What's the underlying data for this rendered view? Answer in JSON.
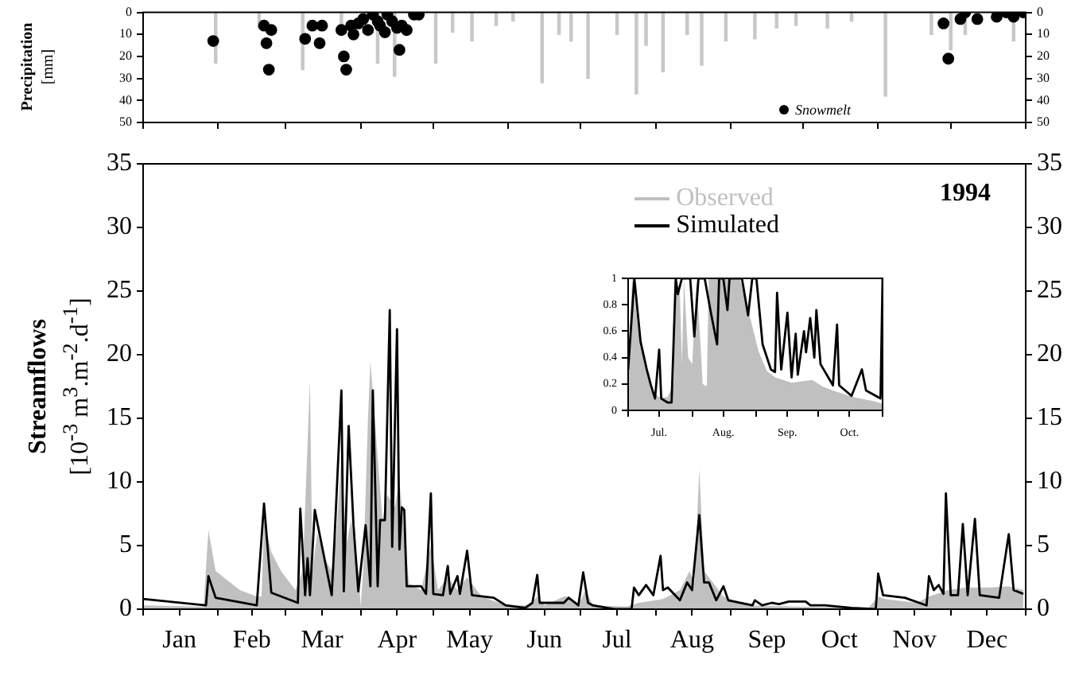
{
  "chart_data": [
    {
      "type": "bar",
      "ylabel": "Precipitation\n[mm]",
      "xlim": [
        "1994-01-01",
        "1995-01-01"
      ],
      "xticks": [
        {
          "value": "1994-01-01",
          "label": null
        },
        {
          "value": "1994-02-01",
          "label": null
        },
        {
          "value": "1994-03-01",
          "label": null
        },
        {
          "value": "1994-04-01",
          "label": null
        },
        {
          "value": "1994-05-01",
          "label": null
        },
        {
          "value": "1994-06-01",
          "label": null
        },
        {
          "value": "1994-07-01",
          "label": null
        },
        {
          "value": "1994-08-01",
          "label": null
        },
        {
          "value": "1994-09-01",
          "label": null
        },
        {
          "value": "1994-10-01",
          "label": null
        },
        {
          "value": "1994-11-01",
          "label": null
        },
        {
          "value": "1994-12-01",
          "label": null
        },
        {
          "value": "1995-01-01",
          "label": null
        }
      ],
      "ylim": [
        50,
        0
      ],
      "yticks": [
        0,
        10,
        20,
        30,
        40,
        50
      ],
      "y2lim": [
        50,
        0
      ],
      "y2ticks": [
        0,
        10,
        20,
        30,
        40,
        50
      ],
      "tick_labels": "y",
      "legend": "bottom right",
      "marker": "circle",
      "series": [
        {
          "color": "#c8c8c8",
          "x": [
            "1994-01-31",
            "1994-02-18",
            "1994-03-08",
            "1994-03-17",
            "1994-03-24",
            "1994-03-31",
            "1994-04-08",
            "1994-04-15",
            "1994-05-02",
            "1994-05-09",
            "1994-05-17",
            "1994-05-27",
            "1994-06-03",
            "1994-06-15",
            "1994-06-22",
            "1994-06-27",
            "1994-07-04",
            "1994-07-16",
            "1994-07-24",
            "1994-07-28",
            "1994-08-04",
            "1994-08-14",
            "1994-08-20",
            "1994-08-30",
            "1994-09-11",
            "1994-09-20",
            "1994-09-28",
            "1994-10-11",
            "1994-10-21",
            "1994-11-04",
            "1994-11-23",
            "1994-12-01",
            "1994-12-07",
            "1994-12-19",
            "1994-12-27"
          ],
          "values": [
            23,
            7,
            26,
            null,
            7,
            null,
            23,
            29,
            23,
            9,
            13,
            6,
            4,
            32,
            10,
            13,
            30,
            10,
            37,
            15,
            27,
            10,
            24,
            13,
            12,
            7,
            6,
            7,
            4,
            38,
            10,
            17,
            10,
            null,
            13
          ]
        },
        {
          "type": "scatter",
          "name": "Snowmelt",
          "color": "#000000",
          "x": [
            "1994-01-30",
            "1994-02-20",
            "1994-02-21",
            "1994-02-22",
            "1994-02-23",
            "1994-03-09",
            "1994-03-12",
            "1994-03-15",
            "1994-03-16",
            "1994-03-24",
            "1994-03-25",
            "1994-03-26",
            "1994-03-28",
            "1994-03-29",
            "1994-03-31",
            "1994-04-02",
            "1994-04-04",
            "1994-04-06",
            "1994-04-08",
            "1994-04-09",
            "1994-04-11",
            "1994-04-12",
            "1994-04-14",
            "1994-04-16",
            "1994-04-17",
            "1994-04-18",
            "1994-04-20",
            "1994-04-23",
            "1994-04-25",
            "1994-11-28",
            "1994-11-30",
            "1994-12-05",
            "1994-12-07",
            "1994-12-12",
            "1994-12-20",
            "1994-12-24",
            "1994-12-27",
            "1994-12-31"
          ],
          "values": [
            13,
            6,
            14,
            26,
            8,
            12,
            6,
            14,
            6,
            8,
            20,
            26,
            6,
            10,
            5,
            3,
            8,
            1,
            4,
            6,
            9,
            1,
            4,
            7,
            17,
            6,
            8,
            1,
            1,
            5,
            21,
            3,
            0,
            3,
            2,
            0,
            2,
            0
          ]
        }
      ]
    },
    {
      "type": "area",
      "ylabel": "Streamflows\n[10$^{-3}$ m$^{3}$.m$^{-2}$.d$^{-1}$]",
      "annotations": [
        "1994"
      ],
      "xlim": [
        "1994-01-01",
        "1995-01-01"
      ],
      "xticks": [
        {
          "value": "1994-01-01",
          "label": null
        },
        {
          "value": "1994-01-16",
          "label": "Jan"
        },
        {
          "value": "1994-02-01",
          "label": null
        },
        {
          "value": "1994-02-15",
          "label": "Feb"
        },
        {
          "value": "1994-03-01",
          "label": null
        },
        {
          "value": "1994-03-16",
          "label": "Mar"
        },
        {
          "value": "1994-04-01",
          "label": null
        },
        {
          "value": "1994-04-16",
          "label": "Apr"
        },
        {
          "value": "1994-05-01",
          "label": null
        },
        {
          "value": "1994-05-16",
          "label": "May"
        },
        {
          "value": "1994-06-01",
          "label": null
        },
        {
          "value": "1994-06-16",
          "label": "Jun"
        },
        {
          "value": "1994-07-01",
          "label": null
        },
        {
          "value": "1994-07-16",
          "label": "Jul"
        },
        {
          "value": "1994-08-01",
          "label": null
        },
        {
          "value": "1994-08-16",
          "label": "Aug"
        },
        {
          "value": "1994-09-01",
          "label": null
        },
        {
          "value": "1994-09-16",
          "label": "Sep"
        },
        {
          "value": "1994-10-01",
          "label": null
        },
        {
          "value": "1994-10-16",
          "label": "Oct"
        },
        {
          "value": "1994-11-01",
          "label": null
        },
        {
          "value": "1994-11-16",
          "label": "Nov"
        },
        {
          "value": "1994-12-01",
          "label": null
        },
        {
          "value": "1994-12-16",
          "label": "Dec"
        },
        {
          "value": "1995-01-01",
          "label": null
        }
      ],
      "ylim": [
        0,
        35
      ],
      "yticks": [
        0,
        5,
        10,
        15,
        20,
        25,
        30,
        35
      ],
      "y2lim": [
        0,
        35
      ],
      "y2ticks": [
        0,
        5,
        10,
        15,
        20,
        25,
        30,
        35
      ],
      "legend": "top right",
      "series": [
        {
          "name": "Observed",
          "color": "#c0c0c0",
          "x": [
            "1994-01-01",
            "1994-01-26",
            "1994-01-28",
            "1994-01-31",
            "1994-02-10",
            "1994-02-17",
            "1994-02-19",
            "1994-02-20",
            "1994-02-23",
            "1994-02-27",
            "1994-03-05",
            "1994-03-08",
            "1994-03-11",
            "1994-03-12",
            "1994-03-14",
            "1994-03-17",
            "1994-03-20",
            "1994-03-22",
            "1994-03-24",
            "1994-03-26",
            "1994-03-28",
            "1994-03-31",
            "1994-04-01",
            "1994-04-02",
            "1994-04-04",
            "1994-04-05",
            "1994-04-10",
            "1994-04-12",
            "1994-04-15",
            "1994-04-17",
            "1994-04-19",
            "1994-04-21",
            "1994-04-26",
            "1994-04-30",
            "1994-05-03",
            "1994-05-07",
            "1994-05-11",
            "1994-05-15",
            "1994-05-21",
            "1994-05-31",
            "1994-06-10",
            "1994-06-13",
            "1994-06-16",
            "1994-06-24",
            "1994-06-26",
            "1994-06-30",
            "1994-07-03",
            "1994-07-06",
            "1994-07-20",
            "1994-07-25",
            "1994-08-04",
            "1994-08-11",
            "1994-08-15",
            "1994-08-17",
            "1994-08-19",
            "1994-08-21",
            "1994-08-25",
            "1994-08-29",
            "1994-09-08",
            "1994-09-28",
            "1994-10-28",
            "1994-11-01",
            "1994-11-04",
            "1994-11-17",
            "1994-11-22",
            "1994-11-30",
            "1994-12-07",
            "1994-12-17",
            "1994-12-25",
            "1994-12-31"
          ],
          "values": [
            0.3,
            0.2,
            6.2,
            3.0,
            1.5,
            1.0,
            1.0,
            7.0,
            4.5,
            3.0,
            1.5,
            3.0,
            18,
            3.0,
            6.0,
            4.0,
            3.0,
            6.0,
            12,
            5,
            7,
            3,
            0.2,
            3,
            15,
            19.5,
            7,
            9,
            8,
            10,
            6,
            2,
            1.5,
            5,
            1.5,
            2.5,
            1.5,
            2.5,
            1,
            0.3,
            0.3,
            1,
            0.3,
            1,
            1,
            0.3,
            1.5,
            0.3,
            0.2,
            0.5,
            0.8,
            1.5,
            3,
            2,
            11,
            3,
            2,
            1,
            0.3,
            0.2,
            0.1,
            1,
            0.8,
            0.5,
            1,
            1.5,
            1.7,
            1.7,
            1.8,
            1.5
          ]
        },
        {
          "type": "line",
          "name": "Simulated",
          "color": "#000000",
          "x": [
            "1994-01-01",
            "1994-01-27",
            "1994-01-28",
            "1994-01-31",
            "1994-02-17",
            "1994-02-20",
            "1994-02-23",
            "1994-03-06",
            "1994-03-07",
            "1994-03-09",
            "1994-03-10",
            "1994-03-11",
            "1994-03-13",
            "1994-03-20",
            "1994-03-21",
            "1994-03-24",
            "1994-03-25",
            "1994-03-27",
            "1994-03-29",
            "1994-03-31",
            "1994-04-03",
            "1994-04-05",
            "1994-04-06",
            "1994-04-08",
            "1994-04-09",
            "1994-04-11",
            "1994-04-13",
            "1994-04-14",
            "1994-04-16",
            "1994-04-17",
            "1994-04-18",
            "1994-04-19",
            "1994-04-20",
            "1994-04-26",
            "1994-04-28",
            "1994-04-30",
            "1994-05-01",
            "1994-05-05",
            "1994-05-07",
            "1994-05-08",
            "1994-05-11",
            "1994-05-12",
            "1994-05-15",
            "1994-05-17",
            "1994-05-26",
            "1994-05-31",
            "1994-06-08",
            "1994-06-11",
            "1994-06-13",
            "1994-06-14",
            "1994-06-24",
            "1994-06-26",
            "1994-06-30",
            "1994-07-02",
            "1994-07-04",
            "1994-07-06",
            "1994-07-15",
            "1994-07-22",
            "1994-07-23",
            "1994-07-25",
            "1994-07-28",
            "1994-07-31",
            "1994-08-03",
            "1994-08-04",
            "1994-08-06",
            "1994-08-11",
            "1994-08-14",
            "1994-08-16",
            "1994-08-19",
            "1994-08-21",
            "1994-08-23",
            "1994-08-26",
            "1994-08-29",
            "1994-08-31",
            "1994-09-10",
            "1994-09-11",
            "1994-09-14",
            "1994-09-18",
            "1994-09-21",
            "1994-09-25",
            "1994-09-28",
            "1994-10-02",
            "1994-10-04",
            "1994-10-10",
            "1994-10-21",
            "1994-10-31",
            "1994-11-01",
            "1994-11-03",
            "1994-11-12",
            "1994-11-21",
            "1994-11-22",
            "1994-11-24",
            "1994-11-26",
            "1994-11-28",
            "1994-11-29",
            "1994-12-01",
            "1994-12-04",
            "1994-12-06",
            "1994-12-08",
            "1994-12-11",
            "1994-12-13",
            "1994-12-21",
            "1994-12-25",
            "1994-12-27",
            "1994-12-31"
          ],
          "values": [
            0.8,
            0.3,
            2.6,
            0.9,
            0.3,
            8.3,
            1.3,
            0.5,
            7.9,
            1.1,
            4.0,
            1.1,
            7.8,
            1.1,
            4.9,
            17.2,
            1.4,
            14.4,
            6.6,
            1.4,
            6.6,
            1.8,
            17.2,
            1.8,
            7.0,
            7.0,
            23.5,
            4.9,
            22.0,
            4.7,
            8.0,
            7.8,
            1.8,
            1.8,
            1.2,
            9.1,
            1.2,
            1.1,
            3.4,
            1.2,
            2.6,
            1.2,
            4.6,
            1.1,
            0.9,
            0.3,
            0.1,
            0.5,
            2.7,
            0.5,
            0.5,
            0.9,
            0.3,
            2.9,
            0.5,
            0.3,
            0,
            0,
            1.7,
            1.1,
            1.9,
            1.1,
            4.2,
            1.5,
            1.7,
            0.7,
            2.1,
            1.5,
            7.4,
            2.1,
            2.1,
            0.7,
            1.8,
            0.7,
            0.3,
            0.7,
            0.3,
            0.5,
            0.4,
            0.6,
            0.6,
            0.6,
            0.3,
            0.3,
            0.1,
            0,
            2.8,
            1.1,
            0.9,
            0.3,
            2.6,
            1.5,
            1.9,
            1.2,
            9.1,
            1.1,
            1.1,
            6.7,
            1.1,
            7.1,
            1.1,
            0.9,
            5.9,
            1.5,
            1.2
          ]
        }
      ]
    },
    {
      "type": "area",
      "xlim": [
        "1994-07-01",
        "1994-11-01"
      ],
      "xticks": [
        {
          "value": "1994-07-01",
          "label": null
        },
        {
          "value": "1994-07-16",
          "label": "Jul."
        },
        {
          "value": "1994-08-01",
          "label": null
        },
        {
          "value": "1994-08-16",
          "label": "Aug."
        },
        {
          "value": "1994-09-01",
          "label": null
        },
        {
          "value": "1994-09-16",
          "label": "Sep."
        },
        {
          "value": "1994-10-01",
          "label": null
        },
        {
          "value": "1994-10-16",
          "label": "Oct."
        },
        {
          "value": "1994-11-01",
          "label": null
        }
      ],
      "ylim": [
        0,
        1
      ],
      "yticks": [
        0,
        0.2,
        0.4,
        0.6,
        0.8,
        1
      ],
      "series": [
        {
          "color": "#c0c0c0",
          "x": [
            "1994-07-01",
            "1994-07-03",
            "1994-07-06",
            "1994-07-09",
            "1994-07-12",
            "1994-07-16",
            "1994-07-20",
            "1994-07-23",
            "1994-07-24",
            "1994-07-26",
            "1994-07-27",
            "1994-07-28",
            "1994-07-30",
            "1994-08-01",
            "1994-08-03",
            "1994-08-05",
            "1994-08-06",
            "1994-08-08",
            "1994-08-09",
            "1994-08-17",
            "1994-08-24",
            "1994-08-29",
            "1994-09-02",
            "1994-09-06",
            "1994-09-10",
            "1994-09-18",
            "1994-09-23",
            "1994-09-28",
            "1994-10-03",
            "1994-10-08",
            "1994-10-18",
            "1994-10-28",
            "1994-11-01"
          ],
          "values": [
            0.31,
            1,
            0.6,
            0.4,
            0.15,
            0.1,
            0.1,
            0.2,
            1,
            0.9,
            0.35,
            1,
            0.4,
            0.35,
            1,
            0.5,
            0.2,
            0.18,
            1,
            1,
            1,
            0.7,
            0.45,
            0.3,
            0.25,
            0.21,
            0.22,
            0.23,
            0.18,
            0.15,
            0.1,
            0.07,
            0.05
          ]
        },
        {
          "type": "line",
          "color": "#000000",
          "x": [
            "1994-07-01",
            "1994-07-04",
            "1994-07-07",
            "1994-07-10",
            "1994-07-12",
            "1994-07-14",
            "1994-07-16",
            "1994-07-17",
            "1994-07-20",
            "1994-07-22",
            "1994-07-24",
            "1994-07-25",
            "1994-07-27",
            "1994-07-31",
            "1994-08-02",
            "1994-08-04",
            "1994-08-07",
            "1994-08-10",
            "1994-08-13",
            "1994-08-14",
            "1994-08-16",
            "1994-08-18",
            "1994-08-19",
            "1994-08-25",
            "1994-08-28",
            "1994-08-30",
            "1994-09-01",
            "1994-09-04",
            "1994-09-08",
            "1994-09-10",
            "1994-09-11",
            "1994-09-13",
            "1994-09-16",
            "1994-09-18",
            "1994-09-20",
            "1994-09-21",
            "1994-09-24",
            "1994-09-25",
            "1994-09-27",
            "1994-09-29",
            "1994-09-30",
            "1994-10-02",
            "1994-10-08",
            "1994-10-10",
            "1994-10-11",
            "1994-10-17",
            "1994-10-22",
            "1994-10-24",
            "1994-10-31",
            "1994-11-01"
          ],
          "values": [
            0.31,
            1,
            0.52,
            0.31,
            0.19,
            0.09,
            0.46,
            0.09,
            0.06,
            0.06,
            1,
            0.88,
            1,
            1,
            0.56,
            1,
            1,
            0.74,
            0.5,
            1,
            1,
            0.76,
            1,
            1,
            0.72,
            1,
            1,
            0.5,
            0.31,
            0.29,
            0.89,
            0.31,
            0.74,
            0.25,
            0.58,
            0.27,
            0.6,
            0.44,
            0.7,
            0.4,
            0.76,
            0.35,
            0.19,
            0.65,
            0.19,
            0.11,
            0.31,
            0.15,
            0.09,
            1
          ]
        }
      ]
    }
  ]
}
